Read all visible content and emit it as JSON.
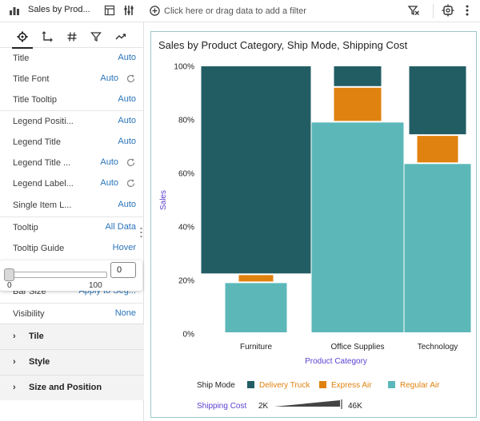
{
  "left_panel": {
    "header_title": "Sales by Prod...",
    "tabs": [
      {
        "name": "gear-icon",
        "active": true
      },
      {
        "name": "axis-icon",
        "active": false
      },
      {
        "name": "hash-icon",
        "active": false
      },
      {
        "name": "filter-icon",
        "active": false
      },
      {
        "name": "analytics-icon",
        "active": false
      }
    ],
    "properties": [
      {
        "label": "Title",
        "value": "Auto",
        "reset": false
      },
      {
        "label": "Title Font",
        "value": "Auto",
        "reset": true
      },
      {
        "label": "Title Tooltip",
        "value": "Auto",
        "reset": false
      },
      {
        "label": "Legend Positi...",
        "value": "Auto",
        "reset": false
      },
      {
        "label": "Legend Title",
        "value": "Auto",
        "reset": false
      },
      {
        "label": "Legend Title ...",
        "value": "Auto",
        "reset": true
      },
      {
        "label": "Legend Label...",
        "value": "Auto",
        "reset": true
      },
      {
        "label": "Single Item L...",
        "value": "Auto",
        "reset": false
      },
      {
        "label": "Tooltip",
        "value": "All Data",
        "reset": false
      },
      {
        "label": "Tooltip Guide",
        "value": "Hover",
        "reset": false
      }
    ],
    "bar_size": {
      "label": "Bar Size",
      "value": "Apply to Seg..."
    },
    "visibility": {
      "label": "Visibility",
      "value": "None"
    },
    "slider": {
      "value": "0",
      "min_label": "0",
      "max_label": "100",
      "level": 0
    },
    "sections": [
      "Tile",
      "Style",
      "Size and Position"
    ]
  },
  "filter_bar": {
    "placeholder": "Click here or drag data to add a filter"
  },
  "chart_data": {
    "type": "bar",
    "title": "Sales by Product Category, Ship Mode, Shipping Cost",
    "xlabel": "Product Category",
    "ylabel": "Sales",
    "ylim": [
      0,
      100
    ],
    "yticks": [
      "0%",
      "20%",
      "40%",
      "60%",
      "80%",
      "100%"
    ],
    "categories": [
      "Furniture",
      "Office Supplies",
      "Technology"
    ],
    "series": [
      {
        "name": "Regular Air",
        "color": "#5cb8b8",
        "values": [
          19,
          79,
          63.5
        ]
      },
      {
        "name": "Express Air",
        "color": "#e0820f",
        "values": [
          3,
          13,
          10.5
        ]
      },
      {
        "name": "Delivery Truck",
        "color": "#225d64",
        "values": [
          78,
          8,
          26
        ]
      }
    ],
    "legend": {
      "title": "Ship Mode",
      "items": [
        "Delivery Truck",
        "Express Air",
        "Regular Air"
      ],
      "size_title": "Shipping Cost",
      "size_min": "2K",
      "size_max": "46K"
    },
    "grid": false
  }
}
